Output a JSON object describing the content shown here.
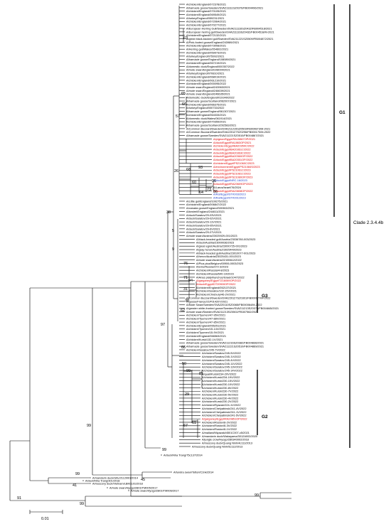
{
  "clade_labels": {
    "g1": "G1",
    "g2": "G2",
    "g3": "G3",
    "main": "Clade 2.3.4.4b"
  },
  "scale_bar": {
    "label": "0.01"
  },
  "bootstrap": {
    "n99_top": "99",
    "n91": "91",
    "n99_a": "99",
    "n99_b": "99",
    "n41": "41",
    "n45": "45",
    "n99_c": "99",
    "n99_d": "99",
    "n99_e": "99",
    "n97": "97",
    "n62": "62",
    "n38": "38",
    "n5": "5",
    "n26": "26",
    "n9": "9",
    "n57": "57",
    "n65": "65",
    "n63": "63",
    "n94": "94",
    "n31": "31",
    "n71": "71",
    "n76": "76",
    "n68": "68",
    "n93": "93",
    "n60": "60",
    "n64": "64",
    "n73": "73",
    "n96": "96",
    "n86": "86",
    "n50": "50",
    "n29": "29",
    "n67": "67",
    "n61": "61",
    "n85": "85",
    "n66": "66"
  },
  "leaves": [
    {
      "t": "A/chicken/England/072378/2021",
      "c": "k"
    },
    {
      "t": "A/barnacle goose/Sweden/SVA211111SZ0376/FB004496/2021",
      "c": "k"
    },
    {
      "t": "A/chicken/England/070105/2021",
      "c": "k"
    },
    {
      "t": "A/chicken/England/069549/2021",
      "c": "k"
    },
    {
      "t": "A/turkey/England/059231/2021",
      "c": "k"
    },
    {
      "t": "A/chicken/England/072064/2021",
      "c": "k"
    },
    {
      "t": "A/chicken/England/070277/2021",
      "c": "k"
    },
    {
      "t": "A/European Herring Gull/Sweden/SVA211116SZ0432/FB004518/2021",
      "c": "k"
    },
    {
      "t": "A/European herring gull/Sweden/SVA211116SZ0432/FB004518/M-2021",
      "c": "k"
    },
    {
      "t": "A/chicken/England/072132/2021",
      "c": "k"
    },
    {
      "t": "A/great black-backed gull/Sweden/SVA211221SZ0509/FB004872/2021",
      "c": "k"
    },
    {
      "t": "A/Pink-footed goose/England/243989/2021",
      "c": "k"
    },
    {
      "t": "A/chicken/England/073008/2021",
      "c": "k"
    },
    {
      "t": "A/Herring gull/Wales/054602/2021",
      "c": "k"
    },
    {
      "t": "A/chicken/England/059973/2021",
      "c": "k"
    },
    {
      "t": "A/turkey/England/075992/2021",
      "c": "k"
    },
    {
      "t": "A/barnacle goose/England/108089/2021",
      "c": "k"
    },
    {
      "t": "A/chicken/England/067219/2021",
      "c": "k"
    },
    {
      "t": "A/domestic duck/England/000357/2022",
      "c": "k"
    },
    {
      "t": "A/mute swan/England/108004/2021",
      "c": "k"
    },
    {
      "t": "A/turkey/England/070810/2021",
      "c": "k"
    },
    {
      "t": "A/chicken/England/068019/2021",
      "c": "k"
    },
    {
      "t": "A/chicken/England/061210/2021",
      "c": "k"
    },
    {
      "t": "A/chicken/England/000095/2022",
      "c": "k"
    },
    {
      "t": "A/mute swan/England/243963/2021",
      "c": "k"
    },
    {
      "t": "A/mute swan/England/246639/2021",
      "c": "k"
    },
    {
      "t": "A/mute swan/England/246635/2021",
      "c": "k"
    },
    {
      "t": "A/domestic duck/England/019349/2022",
      "c": "k"
    },
    {
      "t": "A/barnacle goose/Scotland/062007/2021",
      "c": "k"
    },
    {
      "t": "A/chicken/England/066375/2021",
      "c": "k"
    },
    {
      "t": "A/turkey/England/000733/2022",
      "c": "k"
    },
    {
      "t": "A/barnacle goose/England/061307/2021",
      "c": "k"
    },
    {
      "t": "A/chicken/England/064333/2021",
      "c": "k"
    },
    {
      "t": "A/domestic duck/Wales/061914/2021",
      "c": "k"
    },
    {
      "t": "A/chicken/England/070359/2021",
      "c": "k"
    },
    {
      "t": "A/barnacle goose/Scotland/292583/2021",
      "c": "k"
    },
    {
      "t": "A/Common Buzzard/Sweden/SVA211215SZ0503/FB004873/M-2021",
      "c": "k"
    },
    {
      "t": "A/Common Buzzard/Sweden/SVA220127SZ0296/FB000170/M-2022",
      "c": "k"
    },
    {
      "t": "A/barnacle goose/Sweden/SVA211221SZ0510/FB004867/2021",
      "c": "k"
    },
    {
      "t": "A/pigeon/Egypt/RA15867OP/2021",
      "c": "r"
    },
    {
      "t": "A/duck/Egypt/RA1863OP/2021",
      "c": "r"
    },
    {
      "t": "A/chicken/Egypt/BA20350C/2022",
      "c": "r"
    },
    {
      "t": "A/duck/Egypt/BA20361C/2022",
      "c": "r"
    },
    {
      "t": "A/duck/Egypt/BA20363C/2022",
      "c": "r"
    },
    {
      "t": "A/duck/Egypt/BA20360OP/2022",
      "c": "r"
    },
    {
      "t": "A/duck/Egypt/BA20351OP/2022",
      "c": "r"
    },
    {
      "t": "A/chicken/Egypt/PS21060C/2023",
      "c": "r"
    },
    {
      "t": "A/environment/Egypt/PS21084S/2023",
      "c": "r"
    },
    {
      "t": "A/duck/Egypt/PS21061C/2023",
      "c": "r"
    },
    {
      "t": "A/duck/Egypt/PS21081C/2023",
      "c": "r"
    },
    {
      "t": "A/duck/Egypt/PS21080OP/2023",
      "c": "r"
    },
    {
      "t": "A/duck/Egypt/NRC-16/2023",
      "c": "b"
    },
    {
      "t": "A/duck/Egypt/RA20609OP/2023",
      "c": "r"
    },
    {
      "t": "A/Larus/Israel/76/2024",
      "c": "k"
    },
    {
      "t": "A/duck/Egypt/RA20838OP/2022",
      "c": "r"
    },
    {
      "t": "A/Rat/Egypt/STK003/2023",
      "c": "b"
    },
    {
      "t": "A/Rat/Egypt/STK001/2023",
      "c": "b"
    },
    {
      "t": "A/Little gull/England/109275/2021",
      "c": "k"
    },
    {
      "t": "A/chicken/England/006847/2022",
      "c": "k"
    },
    {
      "t": "A/canada goose/England/300363/2021",
      "c": "k"
    },
    {
      "t": "A/kestrel/England/244611/2021",
      "c": "k"
    },
    {
      "t": "A/duck/Saratov/29-03V/2021",
      "c": "k"
    },
    {
      "t": "A/duck/Saratov/29-02V/2021",
      "c": "k"
    },
    {
      "t": "A/duck/Saratov/29-11V/2021",
      "c": "k"
    },
    {
      "t": "A/duck/Saratov/29-05V/2021",
      "c": "k"
    },
    {
      "t": "A/duck/Saratov/29-6V/2021",
      "c": "k"
    },
    {
      "t": "A/duck/Saratov/29-07V/2021",
      "c": "k"
    },
    {
      "t": "A/mute swan/Austria/23025929-001/2023",
      "c": "k"
    },
    {
      "t": "A/black-headed gull/Austria/23036780-003/2023",
      "c": "k"
    },
    {
      "t": "A/duck/Austria/23000036/2023",
      "c": "k"
    },
    {
      "t": "A/great egret/Austria/23000725-001/2023",
      "c": "k"
    },
    {
      "t": "A/gray heron/Austria/23025449/2023",
      "c": "k"
    },
    {
      "t": "A/black-headed gull/Austria/23010077-001/2023",
      "c": "k"
    },
    {
      "t": "A/heron/Austria/23025431-001/2023",
      "c": "k"
    },
    {
      "t": "A/mute swan/Austria/22155612/2022",
      "c": "k"
    },
    {
      "t": "A/Pica pica/Belgium/00906-0003/2023",
      "c": "k"
    },
    {
      "t": "A/emu/Russia/372-3/2023",
      "c": "k"
    },
    {
      "t": "A/chicken/Russia/4-8/2023",
      "c": "k"
    },
    {
      "t": "A/chicken/Russia/540-10/2023",
      "c": "k"
    },
    {
      "t": "A/Anas platyrhynchos/Israel/1047/2022",
      "c": "k"
    },
    {
      "t": "A/garganey/Egypt/TZ16069OP/2022",
      "c": "r"
    },
    {
      "t": "A/duck/Egypt/DT20900OP/2022",
      "c": "r"
    },
    {
      "t": "A/chicken/England/052137/2021",
      "c": "k"
    },
    {
      "t": "A/chicken/Saratov/102-15V/2021",
      "c": "k"
    },
    {
      "t": "A/chicken/Chrebury/46-2V/2021",
      "c": "k"
    },
    {
      "t": "A/Common Buzzard/Sweden/SVA220127SZ0301/FB000177/M-2022",
      "c": "k"
    },
    {
      "t": "A/goose/France/21P014207/2021",
      "c": "k"
    },
    {
      "t": "A/Mute Swan/Sweden/SVA220110SZ0065/FB000064/M-2022",
      "c": "k"
    },
    {
      "t": "A/greater white-fronted goose/Sweden/SVA211213SZ0373/FB004845/2021",
      "c": "k"
    },
    {
      "t": "A/mute swan/Sweden/SVA211213SZ0502/FB307562/2021",
      "c": "k"
    },
    {
      "t": "A/chicken/Tyumen/47-95V/2021",
      "c": "k"
    },
    {
      "t": "A/chicken/Tyumen/47-88V/2021",
      "c": "k"
    },
    {
      "t": "A/chicken/Tyumen/47-85V/2021",
      "c": "k"
    },
    {
      "t": "A/chicken/England/055251/2021",
      "c": "k"
    },
    {
      "t": "A/chicken/Tyumen/15-14V/2021",
      "c": "k"
    },
    {
      "t": "A/chicken/Tyumen/15-9V/2021",
      "c": "k"
    },
    {
      "t": "A/chicken/England/066563/2021",
      "c": "k"
    },
    {
      "t": "A/chicken/Kursk/132-1V/2021",
      "c": "k"
    },
    {
      "t": "A/barnacle goose/Sweden/SVA211216SZ0382/FB004836/2021",
      "c": "k"
    },
    {
      "t": "A/barnacle goose/Sweden/SVA211221SZ0510/FB004869/2021",
      "c": "k"
    },
    {
      "t": "A/chicken/Saratov/245-7V/2022",
      "c": "k"
    },
    {
      "t": "A/chicken/Saratov/245-5V/2022",
      "c": "k"
    },
    {
      "t": "A/chicken/Saratov/245-1V/2022",
      "c": "k"
    },
    {
      "t": "A/chicken/Saratov/245-4V/2022",
      "c": "k"
    },
    {
      "t": "A/chicken/Saratov/245-11V/2022",
      "c": "k"
    },
    {
      "t": "A/chicken/Saratov/245-13V/2022",
      "c": "k"
    },
    {
      "t": "A/chicken/Saratov/245-14V/2022",
      "c": "k"
    },
    {
      "t": "A/quail/Kursk/234-20V/2022",
      "c": "k"
    },
    {
      "t": "A/chicken/Kursk/234-19V/2022",
      "c": "k"
    },
    {
      "t": "A/chicken/Kursk/230-15V/2022",
      "c": "k"
    },
    {
      "t": "A/chicken/Kursk/230-10V/2022",
      "c": "k"
    },
    {
      "t": "A/chicken/Kursk/230-8V/2022",
      "c": "k"
    },
    {
      "t": "A/chicken/Kursk/230-7V/2022",
      "c": "k"
    },
    {
      "t": "A/chicken/Kursk/230-5V/2022",
      "c": "k"
    },
    {
      "t": "A/chicken/Kursk/230-4V/2022",
      "c": "k"
    },
    {
      "t": "A/chicken/Kursk/230-2V/2022",
      "c": "k"
    },
    {
      "t": "A/chicken/Ryazan/224-1V/2022",
      "c": "k"
    },
    {
      "t": "A/chicken/Chelyabinsk/241-4V/2022",
      "c": "k"
    },
    {
      "t": "A/chicken/Chelyabinsk/241-1V/2022",
      "c": "k"
    },
    {
      "t": "A/chicken/Chelyabinsk/241-5V/2022",
      "c": "k"
    },
    {
      "t": "A/garganey/Egypt/RA20851OP/2022",
      "c": "r"
    },
    {
      "t": "A/chicken/Rostov/8-2V/2022",
      "c": "k"
    },
    {
      "t": "A/chicken/Rostov/8-3V/2022",
      "c": "k"
    },
    {
      "t": "A/chicken/Rostov/8-1V/2022",
      "c": "k"
    },
    {
      "t": "A/mallard/Miyazaki/4501C007-c5/2021",
      "c": "k"
    },
    {
      "t": "A/mandarin duck/Wakayama/3012A002/2020",
      "c": "k"
    },
    {
      "t": "A/jungle crow/Hyogo/280340002/2018",
      "c": "k"
    },
    {
      "t": "A/muscovy duck/Quang Ninh/4c111/2013",
      "c": "k"
    },
    {
      "t": "A/muscovy duck/Quang Ninh/5c112/2013",
      "c": "k"
    },
    {
      "t": "A/duck/Nha Trang/75c137/2014",
      "c": "k"
    },
    {
      "t": "A/tundra swan/Tottori/C3nk/2014",
      "c": "k"
    },
    {
      "t": "A/mandarin duck/Gifu/211200l1/2014",
      "c": "k"
    },
    {
      "t": "A/muscovy duck/Vietnam/LBM1101/2018",
      "c": "k"
    },
    {
      "t": "A/duck/Nha Trang/301/2018",
      "c": "k"
    },
    {
      "t": "A/mute swan/Hyogo/2801ITM005/2017",
      "c": "k"
    },
    {
      "t": "A/mute swan/Hyogo/2801ITM006/2017",
      "c": "k"
    }
  ]
}
